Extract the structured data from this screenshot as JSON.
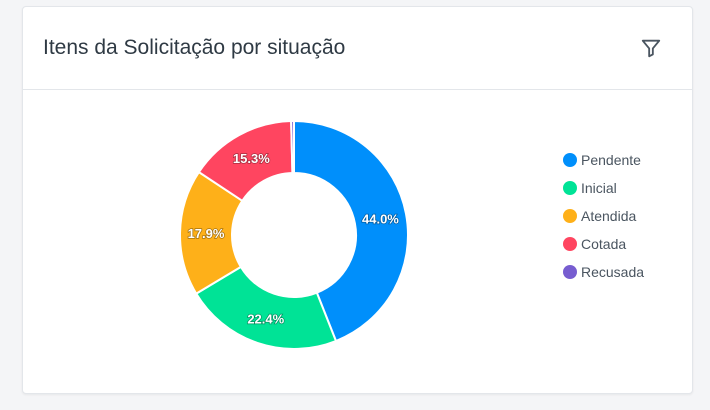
{
  "header": {
    "title": "Itens da Solicitação por situação",
    "filter_icon": "filter-icon"
  },
  "chart_data": {
    "type": "pie",
    "donut": true,
    "categories": [
      "Pendente",
      "Inicial",
      "Atendida",
      "Cotada",
      "Recusada"
    ],
    "values": [
      44.0,
      22.4,
      17.9,
      15.3,
      0.4
    ],
    "labels": [
      "44.0%",
      "22.4%",
      "17.9%",
      "15.3%",
      ""
    ],
    "colors": [
      "#008ffb",
      "#00e396",
      "#feb019",
      "#ff4560",
      "#775dd0"
    ],
    "legend_position": "right"
  }
}
